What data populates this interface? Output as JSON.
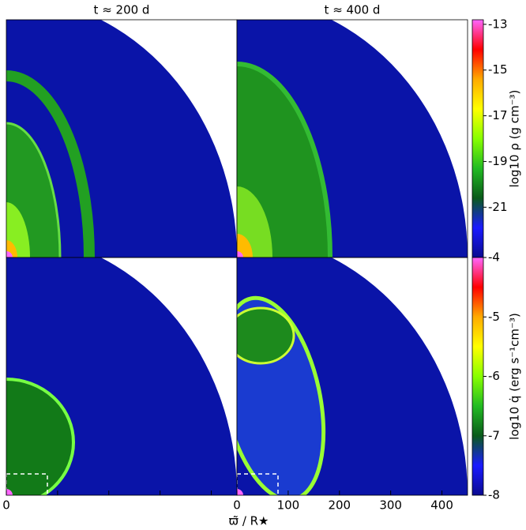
{
  "chart_data": {
    "type": "image-grid",
    "column_titles": [
      "t ≈ 200 d",
      "t ≈ 400 d"
    ],
    "xlabel": "ϖ̃ / R★",
    "xlim": [
      0,
      450
    ],
    "xticks": [
      0,
      100,
      200,
      300,
      400
    ],
    "disk_color": "#0a14a8",
    "colormap": [
      "#ff66ff",
      "#ff0000",
      "#ffaa00",
      "#ffff00",
      "#88ff00",
      "#22bb22",
      "#0a5a1a",
      "#1a1aff",
      "#0a0a90"
    ],
    "colorbars": [
      {
        "label": "log10 ρ (g cm⁻³)",
        "ylim": [
          -23.2,
          -12.8
        ],
        "yticks": [
          -13,
          -15,
          -17,
          -19,
          -21
        ]
      },
      {
        "label": "log10 q̇ (erg s⁻¹cm⁻³)",
        "ylim": [
          -8,
          -4
        ],
        "yticks": [
          -4,
          -5,
          -6,
          -7,
          -8
        ]
      }
    ]
  }
}
